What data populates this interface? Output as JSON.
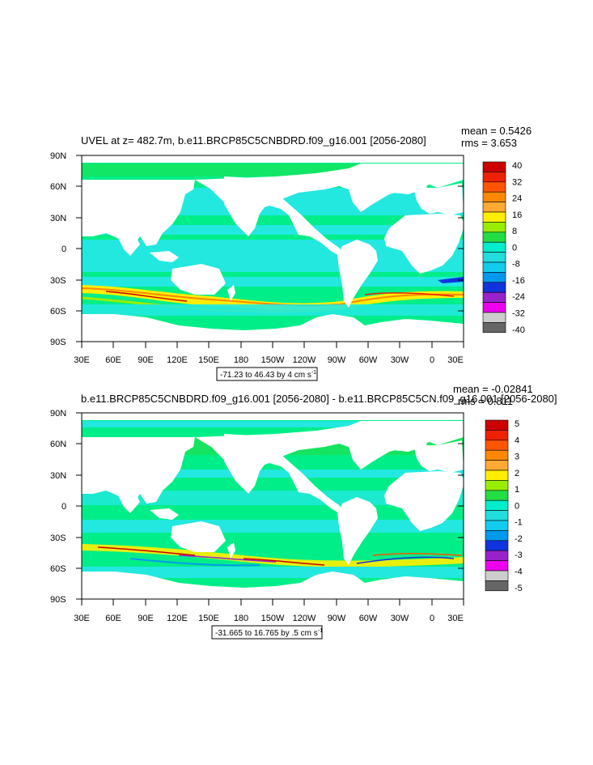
{
  "panels": [
    {
      "title": "UVEL at z= 482.7m, b.e11.BRCP85C5CNBDRD.f09_g16.001 [2056-2080]",
      "stats": {
        "mean": "mean = 0.5426",
        "rms": "rms = 3.653"
      },
      "colorbar_labels": [
        "40",
        "32",
        "24",
        "16",
        "8",
        "0",
        "-8",
        "-16",
        "-24",
        "-32",
        "-40"
      ],
      "info": "-71.23 to 46.43 by 4 cm s",
      "info_sup": "-1"
    },
    {
      "title": "b.e11.BRCP85C5CNBDRD.f09_g16.001 [2056-2080] - b.e11.BRCP85C5CN.f09_g16.001 [2056-2080]",
      "stats": {
        "mean": "mean = -0.02841",
        "rms": "rms = 0.811"
      },
      "colorbar_labels": [
        "5",
        "4",
        "3",
        "2",
        "1",
        "0",
        "-1",
        "-2",
        "-3",
        "-4",
        "-5"
      ],
      "info": "-31.665 to 16.765 by .5 cm s",
      "info_sup": "-1"
    }
  ],
  "lat_labels": [
    "90N",
    "60N",
    "30N",
    "0",
    "30S",
    "60S",
    "90S"
  ],
  "lon_labels": [
    "30E",
    "60E",
    "90E",
    "120E",
    "150E",
    "180",
    "150W",
    "120W",
    "90W",
    "60W",
    "30W",
    "0",
    "30E"
  ],
  "colors": {
    "land": "#ffffff",
    "ocean_base": "#00ee88",
    "ocean_cyan": "#22e8e0",
    "scale": [
      "#cc0000",
      "#ee2200",
      "#ff5500",
      "#ff8800",
      "#ffaa33",
      "#ffee00",
      "#99ee00",
      "#22dd44",
      "#00eecc",
      "#22dddd",
      "#11ccee",
      "#0099ee",
      "#1133dd",
      "#9922cc",
      "#ee00ee",
      "#cccccc",
      "#666666"
    ]
  }
}
